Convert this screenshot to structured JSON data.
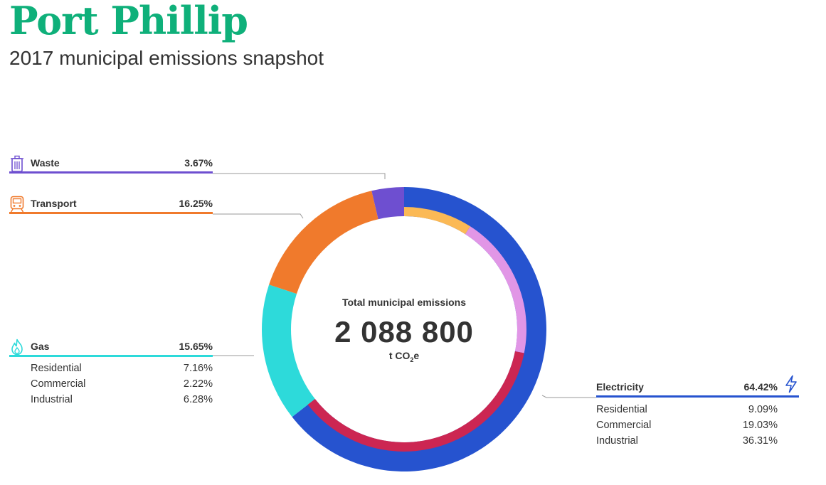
{
  "title": "Port Phillip",
  "subtitle": "2017 municipal emissions snapshot",
  "center": {
    "label": "Total municipal emissions",
    "value": "2 088 800",
    "unit_prefix": "t CO",
    "unit_sub": "2",
    "unit_suffix": "e"
  },
  "colors": {
    "title": "#0fb07a",
    "waste": "#6e4fd0",
    "transport": "#f07a2c",
    "gas": "#2ddada",
    "electricity": "#2653cf",
    "elec_residential": "#fbb955",
    "elec_commercial": "#e196e6",
    "elec_industrial": "#cc2652",
    "leader": "#999999"
  },
  "icons": {
    "waste": "trash-bin-icon",
    "transport": "train-icon",
    "gas": "flame-icon",
    "electricity": "lightning-bolt-icon"
  },
  "legend": {
    "waste": {
      "name": "Waste",
      "pct": "3.67%"
    },
    "transport": {
      "name": "Transport",
      "pct": "16.25%"
    },
    "gas": {
      "name": "Gas",
      "pct": "15.65%",
      "rows": [
        {
          "name": "Residential",
          "pct": "7.16%"
        },
        {
          "name": "Commercial",
          "pct": "2.22%"
        },
        {
          "name": "Industrial",
          "pct": "6.28%"
        }
      ]
    },
    "electricity": {
      "name": "Electricity",
      "pct": "64.42%",
      "rows": [
        {
          "name": "Residential",
          "pct": "9.09%"
        },
        {
          "name": "Commercial",
          "pct": "19.03%"
        },
        {
          "name": "Industrial",
          "pct": "36.31%"
        }
      ]
    }
  },
  "chart_data": {
    "type": "pie",
    "title": "2017 municipal emissions snapshot",
    "unit": "%",
    "total": "2 088 800 t CO2e",
    "slices": [
      {
        "name": "Electricity",
        "value": 64.42,
        "breakdown": [
          {
            "name": "Residential",
            "value": 9.09
          },
          {
            "name": "Commercial",
            "value": 19.03
          },
          {
            "name": "Industrial",
            "value": 36.31
          }
        ]
      },
      {
        "name": "Gas",
        "value": 15.65,
        "breakdown": [
          {
            "name": "Residential",
            "value": 7.16
          },
          {
            "name": "Commercial",
            "value": 2.22
          },
          {
            "name": "Industrial",
            "value": 6.28
          }
        ]
      },
      {
        "name": "Transport",
        "value": 16.25
      },
      {
        "name": "Waste",
        "value": 3.67
      }
    ]
  }
}
